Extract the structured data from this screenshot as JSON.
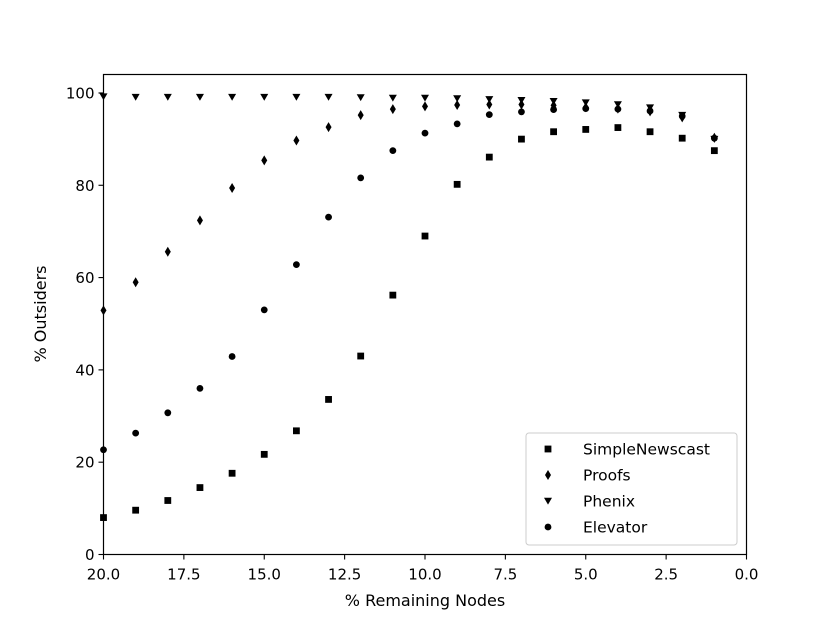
{
  "chart_data": {
    "type": "scatter",
    "xlabel": "% Remaining Nodes",
    "ylabel": "% Outsiders",
    "xlim": [
      20.0,
      0.0
    ],
    "ylim": [
      0,
      104
    ],
    "x_ticks": [
      20.0,
      17.5,
      15.0,
      12.5,
      10.0,
      7.5,
      5.0,
      2.5,
      0.0
    ],
    "x_tick_labels": [
      "20.0",
      "17.5",
      "15.0",
      "12.5",
      "10.0",
      "7.5",
      "5.0",
      "2.5",
      "0.0"
    ],
    "y_ticks": [
      0,
      20,
      40,
      60,
      80,
      100
    ],
    "y_tick_labels": [
      "0",
      "20",
      "40",
      "60",
      "80",
      "100"
    ],
    "grid": false,
    "legend_position": "lower-right",
    "x": [
      20,
      19,
      18,
      17,
      16,
      15,
      14,
      13,
      12,
      11,
      10,
      9,
      8,
      7,
      6,
      5,
      4,
      3,
      2,
      1
    ],
    "series": [
      {
        "name": "SimpleNewscast",
        "marker": "square",
        "color": "#000000",
        "values": [
          8.0,
          9.6,
          11.7,
          14.5,
          17.6,
          21.7,
          26.8,
          33.6,
          43.0,
          56.2,
          69.0,
          80.2,
          86.1,
          90.0,
          91.6,
          92.1,
          92.5,
          91.6,
          90.2,
          87.5
        ]
      },
      {
        "name": "Proofs",
        "marker": "thin_diamond",
        "color": "#000000",
        "values": [
          52.9,
          59.0,
          65.6,
          72.4,
          79.4,
          85.4,
          89.7,
          92.6,
          95.2,
          96.5,
          97.1,
          97.4,
          97.5,
          97.5,
          97.3,
          96.9,
          96.6,
          96.0,
          94.7,
          90.3
        ]
      },
      {
        "name": "Phenix",
        "marker": "triangle_down",
        "color": "#000000",
        "values": [
          99.2,
          99.1,
          99.1,
          99.1,
          99.1,
          99.1,
          99.1,
          99.1,
          99.0,
          98.9,
          98.9,
          98.8,
          98.6,
          98.4,
          98.2,
          97.9,
          97.5,
          96.8,
          95.2,
          90.0
        ]
      },
      {
        "name": "Elevator",
        "marker": "circle",
        "color": "#000000",
        "values": [
          22.7,
          26.3,
          30.7,
          36.0,
          42.9,
          53.0,
          62.8,
          73.1,
          81.6,
          87.5,
          91.3,
          93.3,
          95.3,
          95.9,
          96.4,
          96.6,
          96.5,
          96.1,
          95.0,
          90.2
        ]
      }
    ]
  }
}
